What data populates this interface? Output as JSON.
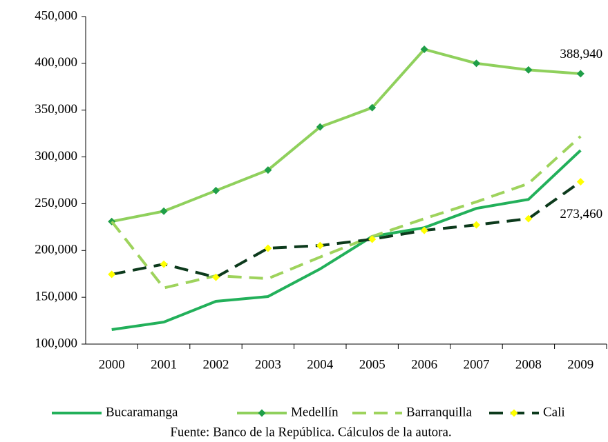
{
  "chart_data": {
    "type": "line",
    "categories": [
      "2000",
      "2001",
      "2002",
      "2003",
      "2004",
      "2005",
      "2006",
      "2007",
      "2008",
      "2009"
    ],
    "series": [
      {
        "name": "Bucaramanga",
        "color": "#22b05a",
        "dash": false,
        "values": [
          115500,
          123500,
          145700,
          150800,
          180300,
          215000,
          224400,
          245000,
          254600,
          307000
        ]
      },
      {
        "name": "Medellín",
        "color": "#8fd05c",
        "dash": false,
        "marker_color": "#1f9e48",
        "values": [
          231000,
          242000,
          264000,
          286000,
          332000,
          352600,
          415000,
          400000,
          393000,
          388940
        ],
        "value_labels": [
          null,
          null,
          null,
          null,
          null,
          null,
          null,
          null,
          null,
          "388,940"
        ]
      },
      {
        "name": "Barranquilla",
        "color": "#9ed35c",
        "dash": true,
        "values": [
          231000,
          160000,
          173000,
          170000,
          193000,
          215000,
          234000,
          252000,
          271600,
          322000
        ]
      },
      {
        "name": "Cali",
        "color": "#0c3a1c",
        "dash": true,
        "marker_color": "#ffff00",
        "values": [
          174500,
          185400,
          171400,
          202400,
          205300,
          212000,
          221500,
          227400,
          234000,
          273460
        ],
        "value_labels": [
          null,
          null,
          null,
          null,
          null,
          null,
          null,
          null,
          null,
          "273,460"
        ]
      }
    ],
    "ylim": [
      100000,
      450000
    ],
    "yticks": [
      {
        "value": 100000,
        "label": "100,000"
      },
      {
        "value": 150000,
        "label": "150,000"
      },
      {
        "value": 200000,
        "label": "200,000"
      },
      {
        "value": 250000,
        "label": "250,000"
      },
      {
        "value": 300000,
        "label": "300,000"
      },
      {
        "value": 350000,
        "label": "350,000"
      },
      {
        "value": 400000,
        "label": "400,000"
      },
      {
        "value": 450000,
        "label": "450,000"
      }
    ],
    "legend": "bottom",
    "source": "Fuente: Banco de la República. Cálculos de la autora."
  }
}
